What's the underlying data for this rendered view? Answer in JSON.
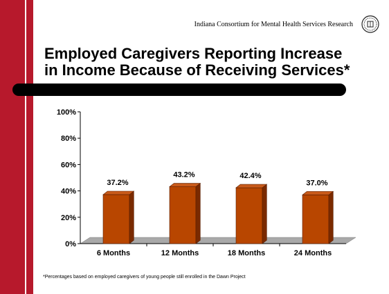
{
  "header": {
    "org": "Indiana Consortium for Mental Health Services Research"
  },
  "slide": {
    "title_line1": "Employed Caregivers Reporting Increase",
    "title_line2": "in Income Because of Receiving Services*"
  },
  "footnote": "*Percentages based on employed caregivers of young people still enrolled in the Dawn Project",
  "colors": {
    "accent": "#b7192c",
    "bar": "#b84600",
    "bar_top": "#c85a1a",
    "bar_side": "#7a2a00",
    "floor": "#a9a9a9"
  },
  "chart_data": {
    "type": "bar",
    "categories": [
      "6 Months",
      "12 Months",
      "18 Months",
      "24 Months"
    ],
    "values": [
      37.2,
      43.2,
      42.4,
      37.0
    ],
    "value_labels": [
      "37.2%",
      "43.2%",
      "42.4%",
      "37.0%"
    ],
    "yticks": [
      "0%",
      "20%",
      "40%",
      "60%",
      "80%",
      "100%"
    ],
    "ylim": [
      0,
      100
    ],
    "title": "Employed Caregivers Reporting Increase in Income Because of Receiving Services*",
    "xlabel": "",
    "ylabel": "",
    "grid": false,
    "style": "3d"
  }
}
